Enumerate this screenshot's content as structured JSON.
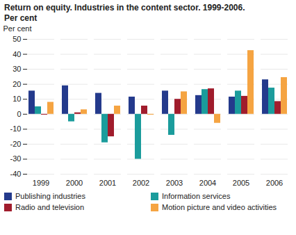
{
  "chart_data": {
    "type": "bar",
    "title": "Return on equity. Industries in the content sector. 1999-2006.",
    "subtitle": "Per cent",
    "y_label": "Per cent",
    "categories": [
      "1999",
      "2000",
      "2001",
      "2002",
      "2003",
      "2004",
      "2005",
      "2006"
    ],
    "series": [
      {
        "name": "Publishing industries",
        "color": "#243a8c",
        "values": [
          15.5,
          19,
          14,
          11.5,
          15.5,
          12.5,
          11.5,
          23
        ]
      },
      {
        "name": "Information services",
        "color": "#1b9c9c",
        "values": [
          5,
          -5,
          -19,
          -30,
          -14,
          16.5,
          15.5,
          17.5
        ]
      },
      {
        "name": "Radio and television",
        "color": "#a01c2c",
        "values": [
          -0.5,
          1,
          -15,
          5.5,
          10,
          17,
          12,
          8.5
        ]
      },
      {
        "name": "Motion picture and video activities",
        "color": "#f5a442",
        "values": [
          8,
          3,
          5.5,
          -0.5,
          15,
          -6,
          42.5,
          24.5
        ]
      }
    ],
    "ylim": [
      -40,
      50
    ],
    "yticks": [
      -40,
      -30,
      -20,
      -10,
      0,
      10,
      20,
      30,
      40,
      50
    ],
    "grid": true,
    "legend": "bottom"
  }
}
